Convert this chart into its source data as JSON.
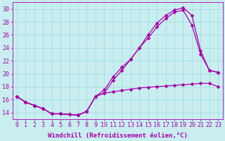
{
  "xlabel": "Windchill (Refroidissement éolien,°C)",
  "background_color": "#c8eef0",
  "line_color": "#aa00aa",
  "xlim": [
    -0.5,
    23.5
  ],
  "ylim": [
    13.0,
    31.0
  ],
  "yticks": [
    14,
    16,
    18,
    20,
    22,
    24,
    26,
    28,
    30
  ],
  "xticks": [
    0,
    1,
    2,
    3,
    4,
    5,
    6,
    7,
    8,
    9,
    10,
    11,
    12,
    13,
    14,
    15,
    16,
    17,
    18,
    19,
    20,
    21,
    22,
    23
  ],
  "line1_x": [
    0,
    1,
    2,
    3,
    4,
    5,
    6,
    7,
    8,
    9,
    10,
    11,
    12,
    13,
    14,
    15,
    16,
    17,
    18,
    19,
    20,
    21,
    22,
    23
  ],
  "line1_y": [
    16.5,
    15.6,
    15.1,
    14.6,
    13.8,
    13.8,
    13.7,
    13.6,
    14.2,
    16.5,
    17.0,
    17.2,
    17.4,
    17.6,
    17.8,
    17.9,
    18.0,
    18.1,
    18.2,
    18.3,
    18.4,
    18.5,
    18.5,
    18.0
  ],
  "line2_x": [
    0,
    1,
    2,
    3,
    4,
    5,
    6,
    7,
    8,
    9,
    10,
    11,
    12,
    13,
    14,
    15,
    16,
    17,
    18,
    19,
    20,
    21,
    22,
    23
  ],
  "line2_y": [
    16.5,
    15.6,
    15.1,
    14.6,
    13.8,
    13.8,
    13.7,
    13.6,
    14.2,
    16.5,
    17.5,
    19.5,
    21.0,
    22.2,
    24.0,
    25.5,
    27.2,
    28.5,
    29.5,
    29.8,
    27.5,
    23.0,
    20.5,
    20.2
  ],
  "line3_x": [
    0,
    1,
    2,
    3,
    4,
    5,
    6,
    7,
    8,
    9,
    10,
    11,
    12,
    13,
    14,
    15,
    16,
    17,
    18,
    19,
    20,
    21,
    22,
    23
  ],
  "line3_y": [
    16.5,
    15.6,
    15.1,
    14.6,
    13.8,
    13.8,
    13.7,
    13.6,
    14.2,
    16.5,
    17.0,
    19.0,
    20.5,
    22.2,
    24.0,
    26.0,
    27.8,
    29.0,
    29.8,
    30.2,
    29.0,
    23.5,
    20.5,
    20.2
  ],
  "grid_color": "#a0d8dc",
  "xlabel_fontsize": 6.5,
  "tick_fontsize": 6.0,
  "marker_size": 2.5,
  "linewidth": 0.9
}
